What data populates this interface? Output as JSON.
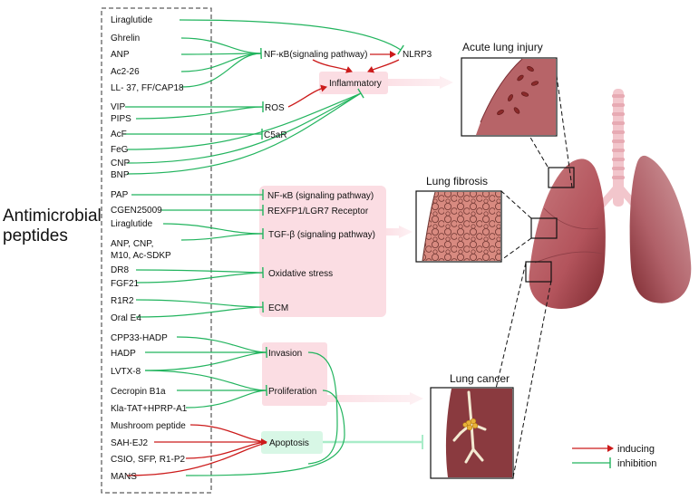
{
  "side_title": [
    "Antimicrobial",
    "peptides"
  ],
  "peptides": {
    "liraglutide": "Liraglutide",
    "ghrelin": "Ghrelin",
    "anp": "ANP",
    "ac226": "Ac2-26",
    "ll37": "LL- 37,  FF/CAP18",
    "vip": "VIP",
    "pips": "PIPS",
    "acf": "AcF",
    "feg": "FeG",
    "cnp": "CNP",
    "bnp": "BNP",
    "pap": "PAP",
    "cgen": "CGEN25009",
    "liraglutide2": "Liraglutide",
    "anp_cnp_1": "ANP, CNP,",
    "anp_cnp_2": "M10, Ac-SDKP",
    "dr8": "DR8",
    "fgf21": "FGF21",
    "r1r2": "R1R2",
    "orale4": "Oral E4",
    "cpp33": "CPP33-HADP",
    "hadp": "HADP",
    "lvtx8": "LVTX-8",
    "cecropin": "Cecropin B1a",
    "kla": "Kla-TAT+HPRP-A1",
    "mushroom": "Mushroom peptide",
    "sah": "SAH-EJ2",
    "csio": "CSIO, SFP, R1-P2",
    "mans": "MANS"
  },
  "targets": {
    "nfkb": "NF-κB(signaling pathway)",
    "nlrp3": "NLRP3",
    "inflammatory": "Inflammatory",
    "ros": "ROS",
    "c5ar": "C5aR",
    "nfkb2": "NF-κB (signaling pathway)",
    "rexfp": "REXFP1/LGR7 Receptor",
    "tgfb": "TGF-β (signaling pathway)",
    "oxidative": "Oxidative stress",
    "ecm": "ECM",
    "invasion": "Invasion",
    "proliferation": "Proliferation",
    "apoptosis": "Apoptosis"
  },
  "diseases": {
    "acute": "Acute lung injury",
    "fibrosis": "Lung fibrosis",
    "cancer": "Lung cancer"
  },
  "legend": {
    "inducing": "inducing",
    "inhibition": "inhibition"
  },
  "colors": {
    "inducing": "#cc1b1b",
    "inhibition": "#22b45e",
    "box_pink": "#fbdde3",
    "box_mint": "#d8f7e6",
    "lung": "#b5545f"
  }
}
